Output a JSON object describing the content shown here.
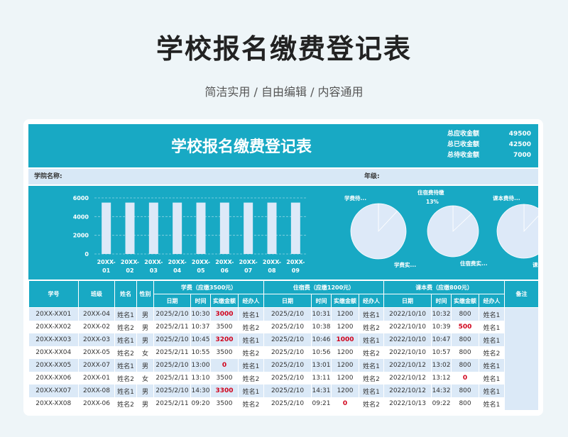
{
  "header": {
    "title": "学校报名缴费登记表",
    "subtitle": "简洁实用 / 自由编辑 / 内容通用"
  },
  "sheet": {
    "title": "学校报名缴费登记表",
    "totals": [
      {
        "label": "总应收金额",
        "value": "49500"
      },
      {
        "label": "总已收金额",
        "value": "42500"
      },
      {
        "label": "总待收金额",
        "value": "7000"
      }
    ],
    "college_label": "学院名称:",
    "grade_label": "年级:"
  },
  "colors": {
    "accent": "#18a9c4",
    "row_alt": "#dbe9f7",
    "bar": "#dde9f8",
    "pie": "#dde9f8",
    "red": "#d0021b"
  },
  "chart_data": [
    {
      "type": "bar",
      "categories": [
        "20XX-01",
        "20XX-02",
        "20XX-03",
        "20XX-04",
        "20XX-05",
        "20XX-06",
        "20XX-07",
        "20XX-08",
        "20XX-09"
      ],
      "series": [
        {
          "values": [
            5500,
            5500,
            5500,
            5500,
            5500,
            5500,
            5500,
            5500,
            5500
          ]
        }
      ],
      "ylim": [
        0,
        6000
      ],
      "yticks": [
        0,
        2000,
        4000,
        6000
      ],
      "grid": true
    },
    {
      "type": "pie",
      "labels": [
        "学费待...",
        "学费实..."
      ],
      "values": [
        12,
        88
      ]
    },
    {
      "type": "pie",
      "labels": [
        "住宿费待缴",
        "住宿费实..."
      ],
      "values": [
        13,
        87
      ],
      "data_labels": [
        "13%"
      ]
    },
    {
      "type": "pie",
      "labels": [
        "课本费待...",
        "课本费实..."
      ],
      "values": [
        12,
        88
      ]
    }
  ],
  "table": {
    "headers": {
      "id": "学号",
      "class": "班级",
      "name": "姓名",
      "gender": "性别",
      "tuition_group": "学费（应缴3500元）",
      "lodging_group": "住宿费（应缴1200元）",
      "books_group": "课本费（应缴800元）",
      "note": "备注",
      "date": "日期",
      "time": "时间",
      "paid": "实缴金额",
      "handler": "经办人"
    },
    "rows": [
      [
        "20XX-XX01",
        "20XX-04",
        "姓名1",
        "男",
        "2025/2/10",
        "10:30",
        "3000",
        "姓名1",
        "2025/2/10",
        "10:31",
        "1200",
        "姓名1",
        "2022/10/10",
        "10:32",
        "800",
        "姓名1"
      ],
      [
        "20XX-XX02",
        "20XX-02",
        "姓名2",
        "男",
        "2025/2/11",
        "10:37",
        "3500",
        "姓名2",
        "2025/2/10",
        "10:38",
        "1200",
        "姓名2",
        "2022/10/10",
        "10:39",
        "500",
        "姓名1"
      ],
      [
        "20XX-XX03",
        "20XX-03",
        "姓名1",
        "男",
        "2025/2/10",
        "10:45",
        "3200",
        "姓名1",
        "2025/2/10",
        "10:46",
        "1000",
        "姓名1",
        "2022/10/10",
        "10:47",
        "800",
        "姓名1"
      ],
      [
        "20XX-XX04",
        "20XX-05",
        "姓名2",
        "女",
        "2025/2/11",
        "10:55",
        "3500",
        "姓名2",
        "2025/2/10",
        "10:56",
        "1200",
        "姓名2",
        "2022/10/10",
        "10:57",
        "800",
        "姓名2"
      ],
      [
        "20XX-XX05",
        "20XX-07",
        "姓名1",
        "男",
        "2025/2/10",
        "13:00",
        "0",
        "姓名1",
        "2025/2/10",
        "13:01",
        "1200",
        "姓名1",
        "2022/10/12",
        "13:02",
        "800",
        "姓名1"
      ],
      [
        "20XX-XX06",
        "20XX-01",
        "姓名2",
        "女",
        "2025/2/11",
        "13:10",
        "3500",
        "姓名2",
        "2025/2/10",
        "13:11",
        "1200",
        "姓名2",
        "2022/10/12",
        "13:12",
        "0",
        "姓名1"
      ],
      [
        "20XX-XX07",
        "20XX-08",
        "姓名1",
        "男",
        "2025/2/10",
        "14:30",
        "3300",
        "姓名1",
        "2025/2/10",
        "14:31",
        "1200",
        "姓名1",
        "2022/10/12",
        "14:32",
        "800",
        "姓名1"
      ],
      [
        "20XX-XX08",
        "20XX-06",
        "姓名2",
        "男",
        "2025/2/11",
        "09:20",
        "3500",
        "姓名2",
        "2025/2/10",
        "09:21",
        "0",
        "姓名2",
        "2022/10/13",
        "09:22",
        "800",
        "姓名1"
      ]
    ],
    "red_cells": [
      [
        0,
        6
      ],
      [
        1,
        14
      ],
      [
        2,
        6
      ],
      [
        2,
        10
      ],
      [
        4,
        6
      ],
      [
        5,
        14
      ],
      [
        6,
        6
      ],
      [
        7,
        10
      ]
    ]
  }
}
